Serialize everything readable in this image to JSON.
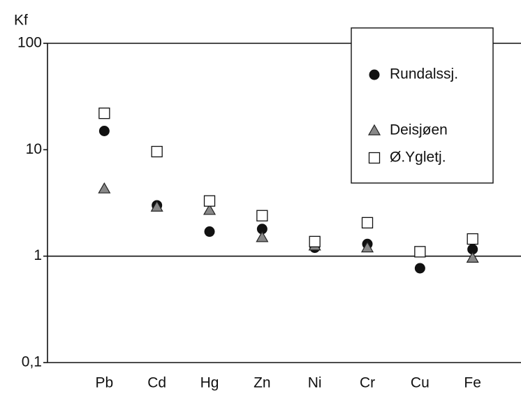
{
  "chart_data": {
    "type": "scatter",
    "y_label": "Kf",
    "log_scale": true,
    "categories": [
      "Pb",
      "Cd",
      "Hg",
      "Zn",
      "Ni",
      "Cr",
      "Cu",
      "Fe"
    ],
    "series": [
      {
        "name": "Rundalssj.",
        "marker": "circle",
        "color": "#111111",
        "values": [
          15,
          3.0,
          1.7,
          1.8,
          1.2,
          1.3,
          0.77,
          1.16
        ]
      },
      {
        "name": "Deisjøen",
        "marker": "triangle",
        "color": "#888888",
        "values": [
          4.3,
          2.9,
          2.7,
          1.5,
          1.25,
          1.2,
          null,
          0.96
        ]
      },
      {
        "name": "Ø.Ygletj.",
        "marker": "square",
        "color": "#ffffff",
        "values": [
          22,
          9.6,
          3.3,
          2.4,
          1.37,
          2.06,
          1.1,
          1.45
        ]
      }
    ],
    "ylim": [
      0.1,
      100
    ],
    "yticks": [
      {
        "value": 0.1,
        "label": "0,1"
      },
      1,
      10,
      100
    ],
    "reference_line": 1,
    "legend": "top-right"
  }
}
